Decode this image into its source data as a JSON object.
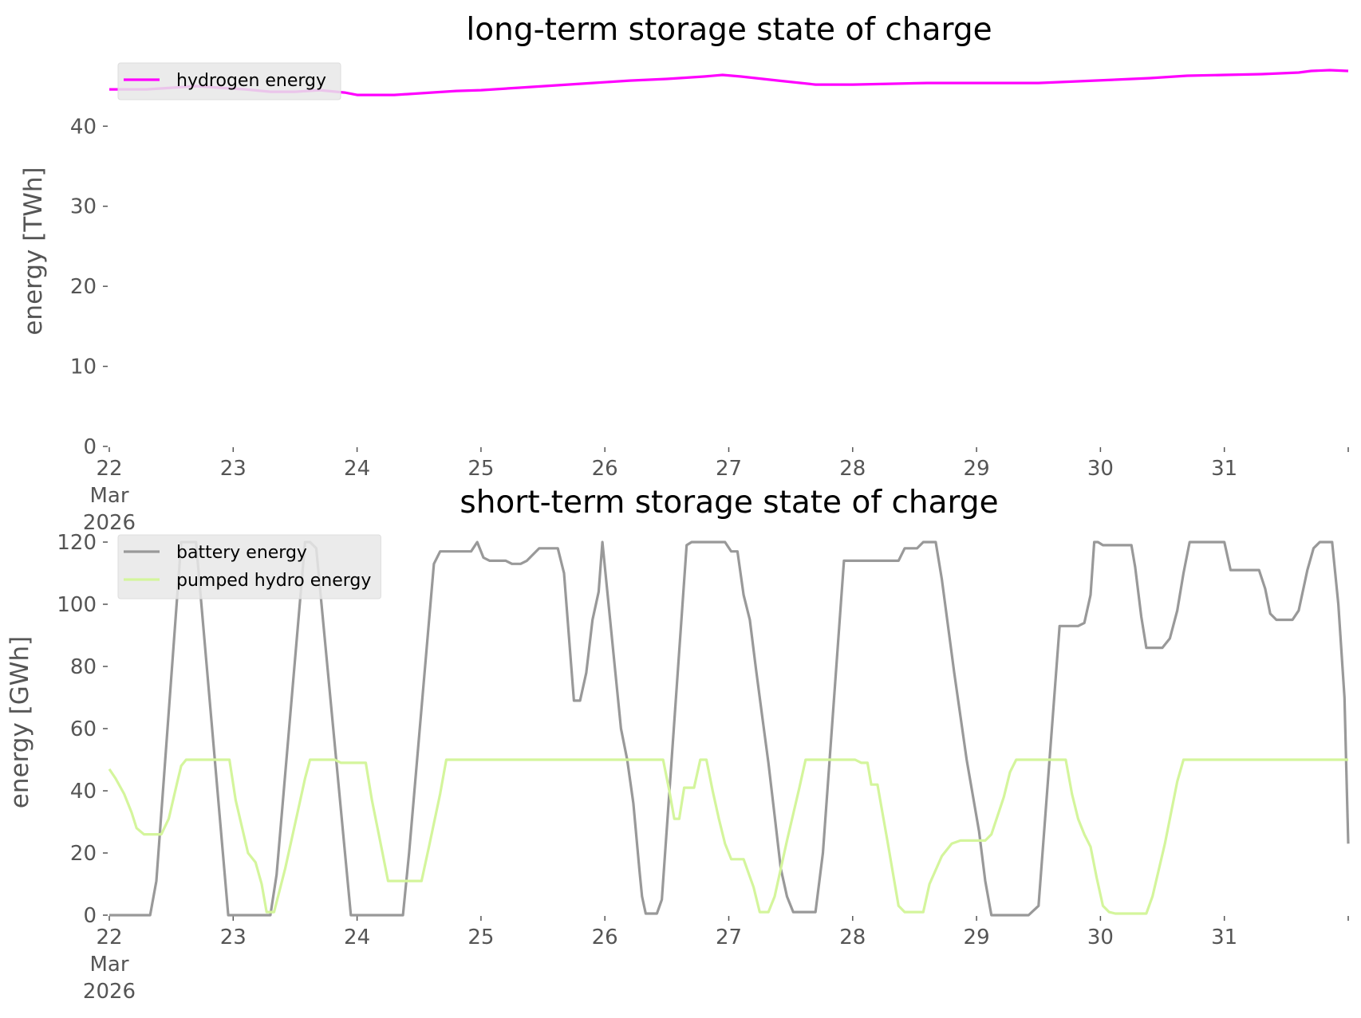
{
  "chart_data": [
    {
      "type": "line",
      "title": "long-term storage state of charge",
      "xlabel": "",
      "ylabel": "energy [TWh]",
      "ylim": [
        0,
        47
      ],
      "yticks": [
        0,
        10,
        20,
        30,
        40
      ],
      "xlim": [
        0,
        10
      ],
      "xticks": [
        {
          "value": 0,
          "label": "22",
          "sublabel": [
            "Mar",
            "2026"
          ]
        },
        {
          "value": 1,
          "label": "23"
        },
        {
          "value": 2,
          "label": "24"
        },
        {
          "value": 3,
          "label": "25"
        },
        {
          "value": 4,
          "label": "26"
        },
        {
          "value": 5,
          "label": "27"
        },
        {
          "value": 6,
          "label": "28"
        },
        {
          "value": 7,
          "label": "29"
        },
        {
          "value": 8,
          "label": "30"
        },
        {
          "value": 9,
          "label": "31"
        },
        {
          "value": 10,
          "label": ""
        }
      ],
      "grid": false,
      "legend": "upper left",
      "series": [
        {
          "name": "hydrogen energy",
          "color": "#ff00ff",
          "points": [
            [
              0,
              44.6
            ],
            [
              0.3,
              44.6
            ],
            [
              0.5,
              44.8
            ],
            [
              0.7,
              45.0
            ],
            [
              0.9,
              44.8
            ],
            [
              1.1,
              44.6
            ],
            [
              1.3,
              44.3
            ],
            [
              1.5,
              44.3
            ],
            [
              1.7,
              44.5
            ],
            [
              1.9,
              44.2
            ],
            [
              2.0,
              43.9
            ],
            [
              2.3,
              43.9
            ],
            [
              2.6,
              44.2
            ],
            [
              2.8,
              44.4
            ],
            [
              3.0,
              44.5
            ],
            [
              3.3,
              44.8
            ],
            [
              3.6,
              45.1
            ],
            [
              3.9,
              45.4
            ],
            [
              4.2,
              45.7
            ],
            [
              4.5,
              45.9
            ],
            [
              4.8,
              46.2
            ],
            [
              4.95,
              46.4
            ],
            [
              5.1,
              46.2
            ],
            [
              5.4,
              45.7
            ],
            [
              5.7,
              45.2
            ],
            [
              6.0,
              45.2
            ],
            [
              6.3,
              45.3
            ],
            [
              6.6,
              45.4
            ],
            [
              6.9,
              45.4
            ],
            [
              7.2,
              45.4
            ],
            [
              7.5,
              45.4
            ],
            [
              7.8,
              45.6
            ],
            [
              8.1,
              45.8
            ],
            [
              8.4,
              46.0
            ],
            [
              8.7,
              46.3
            ],
            [
              9.0,
              46.4
            ],
            [
              9.3,
              46.5
            ],
            [
              9.6,
              46.7
            ],
            [
              9.7,
              46.9
            ],
            [
              9.85,
              47.0
            ],
            [
              10.0,
              46.9
            ]
          ]
        }
      ]
    },
    {
      "type": "line",
      "title": "short-term storage state of charge",
      "xlabel": "",
      "ylabel": "energy [GWh]",
      "ylim": [
        0,
        120
      ],
      "yticks": [
        0,
        20,
        40,
        60,
        80,
        100,
        120
      ],
      "xlim": [
        0,
        10
      ],
      "xticks": [
        {
          "value": 0,
          "label": "22",
          "sublabel": [
            "Mar",
            "2026"
          ]
        },
        {
          "value": 1,
          "label": "23"
        },
        {
          "value": 2,
          "label": "24"
        },
        {
          "value": 3,
          "label": "25"
        },
        {
          "value": 4,
          "label": "26"
        },
        {
          "value": 5,
          "label": "27"
        },
        {
          "value": 6,
          "label": "28"
        },
        {
          "value": 7,
          "label": "29"
        },
        {
          "value": 8,
          "label": "30"
        },
        {
          "value": 9,
          "label": "31"
        },
        {
          "value": 10,
          "label": ""
        }
      ],
      "grid": false,
      "legend": "upper left",
      "series": [
        {
          "name": "battery energy",
          "color": "#999999",
          "points": [
            [
              0,
              0
            ],
            [
              0.33,
              0
            ],
            [
              0.38,
              11
            ],
            [
              0.58,
              120
            ],
            [
              0.7,
              120
            ],
            [
              0.96,
              0
            ],
            [
              1.3,
              0
            ],
            [
              1.35,
              13
            ],
            [
              1.58,
              120
            ],
            [
              1.62,
              120
            ],
            [
              1.67,
              118
            ],
            [
              1.95,
              0
            ],
            [
              2.37,
              0
            ],
            [
              2.42,
              20
            ],
            [
              2.62,
              113
            ],
            [
              2.67,
              117
            ],
            [
              2.92,
              117
            ],
            [
              2.97,
              120
            ],
            [
              3.02,
              115
            ],
            [
              3.07,
              114
            ],
            [
              3.2,
              114
            ],
            [
              3.25,
              113
            ],
            [
              3.32,
              113
            ],
            [
              3.37,
              114
            ],
            [
              3.47,
              118
            ],
            [
              3.62,
              118
            ],
            [
              3.67,
              110
            ],
            [
              3.75,
              69
            ],
            [
              3.8,
              69
            ],
            [
              3.85,
              78
            ],
            [
              3.9,
              95
            ],
            [
              3.95,
              104
            ],
            [
              3.98,
              120
            ],
            [
              4.08,
              80
            ],
            [
              4.13,
              60
            ],
            [
              4.18,
              50
            ],
            [
              4.23,
              36
            ],
            [
              4.28,
              14
            ],
            [
              4.3,
              6
            ],
            [
              4.33,
              0.5
            ],
            [
              4.42,
              0.5
            ],
            [
              4.46,
              5
            ],
            [
              4.66,
              119
            ],
            [
              4.7,
              120
            ],
            [
              4.97,
              120
            ],
            [
              5.02,
              117
            ],
            [
              5.07,
              117
            ],
            [
              5.12,
              103
            ],
            [
              5.17,
              95
            ],
            [
              5.22,
              79
            ],
            [
              5.27,
              64
            ],
            [
              5.32,
              49
            ],
            [
              5.37,
              32
            ],
            [
              5.42,
              15
            ],
            [
              5.47,
              6
            ],
            [
              5.52,
              1
            ],
            [
              5.7,
              1
            ],
            [
              5.76,
              20
            ],
            [
              5.93,
              114
            ],
            [
              6.37,
              114
            ],
            [
              6.42,
              118
            ],
            [
              6.52,
              118
            ],
            [
              6.57,
              120
            ],
            [
              6.67,
              120
            ],
            [
              6.72,
              108
            ],
            [
              6.82,
              78
            ],
            [
              6.92,
              50
            ],
            [
              7.02,
              27
            ],
            [
              7.07,
              11
            ],
            [
              7.12,
              0
            ],
            [
              7.42,
              0
            ],
            [
              7.5,
              3
            ],
            [
              7.67,
              93
            ],
            [
              7.82,
              93
            ],
            [
              7.87,
              94
            ],
            [
              7.92,
              103
            ],
            [
              7.95,
              120
            ],
            [
              7.98,
              120
            ],
            [
              8.02,
              119
            ],
            [
              8.25,
              119
            ],
            [
              8.28,
              112
            ],
            [
              8.33,
              96
            ],
            [
              8.37,
              86
            ],
            [
              8.5,
              86
            ],
            [
              8.56,
              89
            ],
            [
              8.62,
              98
            ],
            [
              8.67,
              110
            ],
            [
              8.72,
              120
            ],
            [
              9.0,
              120
            ],
            [
              9.05,
              111
            ],
            [
              9.28,
              111
            ],
            [
              9.33,
              105
            ],
            [
              9.37,
              97
            ],
            [
              9.42,
              95
            ],
            [
              9.55,
              95
            ],
            [
              9.6,
              98
            ],
            [
              9.67,
              111
            ],
            [
              9.72,
              118
            ],
            [
              9.77,
              120
            ],
            [
              9.87,
              120
            ],
            [
              9.92,
              100
            ],
            [
              9.97,
              70
            ],
            [
              10.0,
              23
            ]
          ]
        },
        {
          "name": "pumped hydro energy",
          "color": "#d4f59c",
          "points": [
            [
              0,
              47
            ],
            [
              0.05,
              44
            ],
            [
              0.12,
              39
            ],
            [
              0.18,
              33
            ],
            [
              0.22,
              28
            ],
            [
              0.28,
              26
            ],
            [
              0.42,
              26
            ],
            [
              0.48,
              31
            ],
            [
              0.55,
              43
            ],
            [
              0.58,
              48
            ],
            [
              0.62,
              50
            ],
            [
              0.97,
              50
            ],
            [
              1.02,
              37
            ],
            [
              1.12,
              20
            ],
            [
              1.18,
              17
            ],
            [
              1.23,
              10
            ],
            [
              1.27,
              1
            ],
            [
              1.33,
              1
            ],
            [
              1.42,
              15
            ],
            [
              1.58,
              44
            ],
            [
              1.62,
              50
            ],
            [
              1.82,
              50
            ],
            [
              1.87,
              49
            ],
            [
              2.07,
              49
            ],
            [
              2.12,
              37
            ],
            [
              2.2,
              21
            ],
            [
              2.25,
              11
            ],
            [
              2.52,
              11
            ],
            [
              2.58,
              22
            ],
            [
              2.67,
              39
            ],
            [
              2.72,
              50
            ],
            [
              4.47,
              50
            ],
            [
              4.52,
              40
            ],
            [
              4.56,
              31
            ],
            [
              4.6,
              31
            ],
            [
              4.64,
              41
            ],
            [
              4.72,
              41
            ],
            [
              4.77,
              50
            ],
            [
              4.82,
              50
            ],
            [
              4.87,
              40
            ],
            [
              4.92,
              31
            ],
            [
              4.97,
              23
            ],
            [
              5.02,
              18
            ],
            [
              5.12,
              18
            ],
            [
              5.2,
              9
            ],
            [
              5.25,
              1
            ],
            [
              5.32,
              1
            ],
            [
              5.37,
              6
            ],
            [
              5.47,
              24
            ],
            [
              5.57,
              41
            ],
            [
              5.62,
              50
            ],
            [
              6.02,
              50
            ],
            [
              6.07,
              49
            ],
            [
              6.12,
              49
            ],
            [
              6.15,
              42
            ],
            [
              6.2,
              42
            ],
            [
              6.28,
              24
            ],
            [
              6.37,
              3
            ],
            [
              6.42,
              1
            ],
            [
              6.57,
              1
            ],
            [
              6.62,
              10
            ],
            [
              6.72,
              19
            ],
            [
              6.8,
              23
            ],
            [
              6.87,
              24
            ],
            [
              7.07,
              24
            ],
            [
              7.12,
              26
            ],
            [
              7.22,
              38
            ],
            [
              7.27,
              46
            ],
            [
              7.32,
              50
            ],
            [
              7.72,
              50
            ],
            [
              7.77,
              39
            ],
            [
              7.82,
              31
            ],
            [
              7.87,
              26
            ],
            [
              7.92,
              22
            ],
            [
              7.97,
              12
            ],
            [
              8.02,
              3
            ],
            [
              8.07,
              1
            ],
            [
              8.12,
              0.5
            ],
            [
              8.37,
              0.5
            ],
            [
              8.42,
              6
            ],
            [
              8.52,
              23
            ],
            [
              8.62,
              43
            ],
            [
              8.67,
              50
            ],
            [
              10.0,
              50
            ]
          ]
        }
      ]
    }
  ]
}
